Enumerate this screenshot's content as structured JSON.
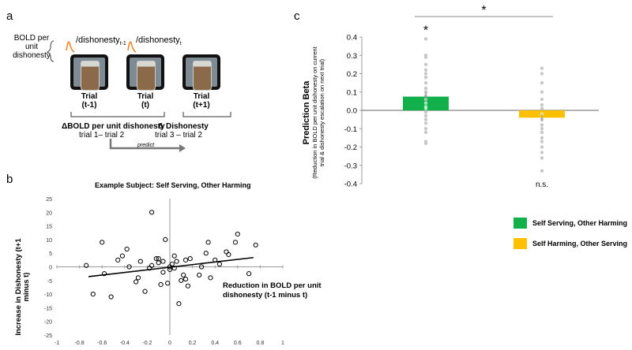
{
  "panels": {
    "a": "a",
    "b": "b",
    "c": "c"
  },
  "panel_a": {
    "bold_per_unit": "BOLD per unit dishonesty",
    "ratio_prev": {
      "prefix": "/dishonesty",
      "sub": "t-1"
    },
    "ratio_cur": {
      "prefix": "/dishonesty",
      "sub": "t"
    },
    "trials": [
      {
        "label": "Trial",
        "sub": "(t-1)"
      },
      {
        "label": "Trial",
        "sub": "(t)"
      },
      {
        "label": "Trial",
        "sub": "(t+1)"
      }
    ],
    "delta_bold": "ΔBOLD per unit dishonesty",
    "delta_bold_sub": "trial 1– trial 2",
    "delta_dis": "Δ Dishonesty",
    "delta_dis_sub": "trial 3 – trial 2",
    "predict": "predict"
  },
  "colors": {
    "green": "#11b04b",
    "yellow": "#ffc000",
    "dot": "#c8c8c8",
    "axis": "#9a9a9a"
  },
  "chart_data": [
    {
      "type": "scatter",
      "title": "Example Subject: Self Serving, Other Harming",
      "xlabel": "Reduction in BOLD per unit dishonesty (t-1 minus t)",
      "ylabel": "Increase in Dishonesty (t+1 minus t)",
      "xlim": [
        -1,
        1
      ],
      "ylim": [
        -25,
        25
      ],
      "xticks": [
        "-1",
        "-0.8",
        "-0.6",
        "-0.4",
        "-0.2",
        "0",
        "0.2",
        "0.4",
        "0.6",
        "0.8",
        "1"
      ],
      "yticks": [
        "25",
        "20",
        "15",
        "10",
        "5",
        "0",
        "-5",
        "-10",
        "-15",
        "-20",
        "-25"
      ],
      "fit_line": [
        [
          -0.72,
          -3.6
        ],
        [
          0.74,
          3.4
        ]
      ],
      "points": [
        [
          -0.74,
          0.5
        ],
        [
          -0.68,
          -10
        ],
        [
          -0.6,
          9
        ],
        [
          -0.58,
          -2.5
        ],
        [
          -0.52,
          -11
        ],
        [
          -0.46,
          2.5
        ],
        [
          -0.42,
          4
        ],
        [
          -0.38,
          6.5
        ],
        [
          -0.36,
          0
        ],
        [
          -0.3,
          -5.5
        ],
        [
          -0.28,
          -4
        ],
        [
          -0.26,
          2
        ],
        [
          -0.22,
          -9
        ],
        [
          -0.18,
          -0.5
        ],
        [
          -0.16,
          0.5
        ],
        [
          -0.16,
          20
        ],
        [
          -0.12,
          3
        ],
        [
          -0.1,
          1.5
        ],
        [
          -0.1,
          3
        ],
        [
          -0.08,
          -6.5
        ],
        [
          -0.06,
          2
        ],
        [
          -0.06,
          -2
        ],
        [
          -0.04,
          10
        ],
        [
          -0.02,
          -6
        ],
        [
          0.0,
          -1
        ],
        [
          0.0,
          0
        ],
        [
          0.02,
          1
        ],
        [
          0.04,
          -0.5
        ],
        [
          0.04,
          4
        ],
        [
          0.06,
          2
        ],
        [
          0.08,
          -13.5
        ],
        [
          0.1,
          -5
        ],
        [
          0.12,
          -3
        ],
        [
          0.14,
          -4.5
        ],
        [
          0.14,
          2.5
        ],
        [
          0.16,
          -7
        ],
        [
          0.18,
          3
        ],
        [
          0.26,
          -3
        ],
        [
          0.28,
          0
        ],
        [
          0.32,
          5
        ],
        [
          0.34,
          9
        ],
        [
          0.36,
          -4
        ],
        [
          0.4,
          2.5
        ],
        [
          0.44,
          1
        ],
        [
          0.5,
          5.5
        ],
        [
          0.52,
          4.5
        ],
        [
          0.58,
          9
        ],
        [
          0.6,
          12
        ],
        [
          0.7,
          -2.5
        ],
        [
          0.76,
          8
        ]
      ]
    },
    {
      "type": "bar",
      "title": "",
      "ylabel": "Prediction Beta",
      "ylabel_sub1": "(Reduction in BOLD per unit dishonesty on current",
      "ylabel_sub2": "trial  & dishonesty escalation on next trial)",
      "ylim": [
        -0.4,
        0.4
      ],
      "yticks": [
        "0.4",
        "0.3",
        "0.2",
        "0.1",
        "0.0",
        "-0.1",
        "-0.2",
        "-0.3",
        "-0.4"
      ],
      "series": [
        {
          "name": "Self Serving, Other Harming",
          "value": 0.075,
          "error": 0.025,
          "annotation": "*",
          "dots": [
            0.39,
            0.3,
            0.29,
            0.25,
            0.22,
            0.2,
            0.18,
            0.15,
            0.12,
            0.1,
            0.08,
            0.06,
            0.04,
            0.02,
            0.01,
            -0.01,
            -0.03,
            -0.05,
            -0.07,
            -0.1,
            -0.12,
            -0.17,
            -0.18
          ]
        },
        {
          "name": "Self Harming, Other Serving",
          "value": -0.04,
          "error": 0.02,
          "annotation": "n.s.",
          "dots": [
            0.23,
            0.2,
            0.15,
            0.1,
            0.06,
            0.03,
            0.01,
            -0.02,
            -0.05,
            -0.08,
            -0.1,
            -0.12,
            -0.15,
            -0.17,
            -0.2,
            -0.23,
            -0.26,
            -0.33
          ]
        }
      ],
      "significance": "*"
    }
  ]
}
